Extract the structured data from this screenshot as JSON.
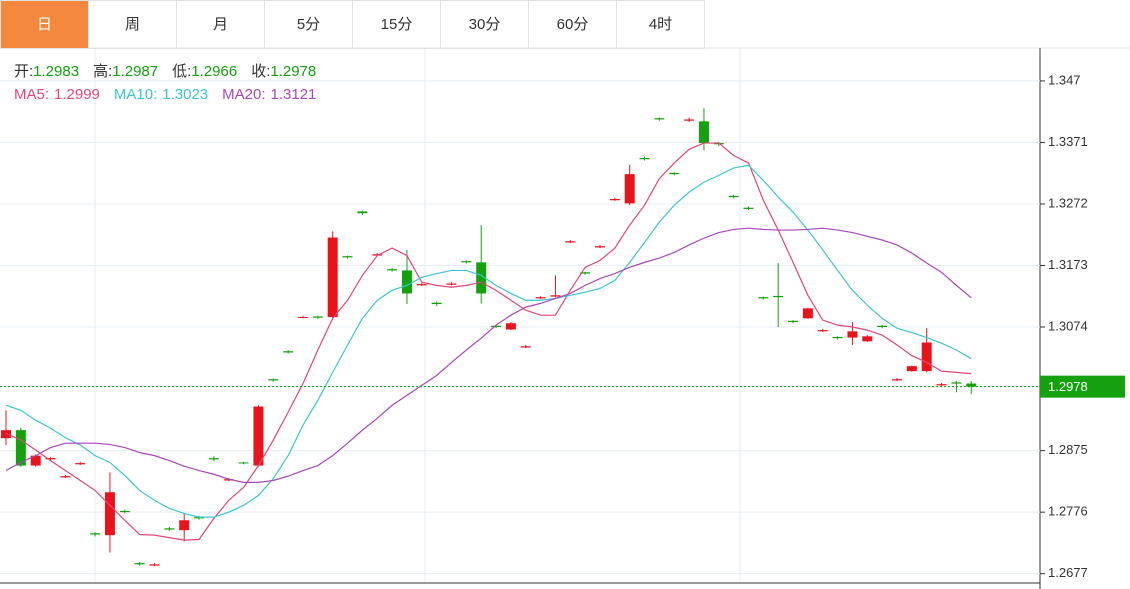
{
  "tabs": [
    "日",
    "周",
    "月",
    "5分",
    "15分",
    "30分",
    "60分",
    "4时"
  ],
  "active_tab": 0,
  "chart_data": {
    "type": "candlestick",
    "ohlc_labels": [
      "开:",
      "高:",
      "低:",
      "收:"
    ],
    "open": [
      1.2895,
      1.2908,
      1.2851,
      1.2861,
      1.2832,
      1.2853,
      1.2742,
      1.2739,
      1.2778,
      1.2694,
      1.269,
      1.275,
      1.2747,
      1.2768,
      1.2863,
      1.2827,
      1.2856,
      1.2851,
      1.299,
      1.3035,
      1.3089,
      1.3091,
      1.309,
      1.3188,
      1.326,
      1.3189,
      1.3167,
      1.3165,
      1.3141,
      1.3113,
      1.3142,
      1.318,
      1.3178,
      1.3076,
      1.307,
      1.3041,
      1.312,
      1.3123,
      1.321,
      1.3162,
      1.3202,
      1.3278,
      1.3273,
      1.3346,
      1.341,
      1.3322,
      1.3406,
      1.3405,
      1.337,
      1.3285,
      1.3266,
      1.3122,
      1.3124,
      1.3084,
      1.3088,
      1.3067,
      1.3058,
      1.3057,
      1.3051,
      1.3076,
      1.2988,
      1.3003,
      1.3003,
      1.298,
      1.2985,
      1.2983
    ],
    "high": [
      1.294,
      1.2912,
      1.2869,
      1.2865,
      1.2836,
      1.2857,
      1.2744,
      1.284,
      1.278,
      1.2696,
      1.2694,
      1.2752,
      1.2774,
      1.277,
      1.2866,
      1.2831,
      1.2857,
      1.2948,
      1.2991,
      1.3037,
      1.3092,
      1.3092,
      1.3228,
      1.3189,
      1.3261,
      1.3193,
      1.3169,
      1.3198,
      1.3145,
      1.3115,
      1.3146,
      1.3181,
      1.3238,
      1.3077,
      1.3082,
      1.3045,
      1.3124,
      1.3157,
      1.3214,
      1.3163,
      1.3206,
      1.3282,
      1.3335,
      1.3348,
      1.3411,
      1.3323,
      1.3411,
      1.3426,
      1.3372,
      1.3287,
      1.3268,
      1.3123,
      1.3177,
      1.3085,
      1.3105,
      1.3071,
      1.3059,
      1.3082,
      1.3061,
      1.3077,
      1.2992,
      1.3012,
      1.3072,
      1.2984,
      1.2987,
      1.2987
    ],
    "low": [
      1.2884,
      1.2849,
      1.2849,
      1.286,
      1.2831,
      1.2852,
      1.2737,
      1.2711,
      1.2774,
      1.269,
      1.2689,
      1.2746,
      1.2729,
      1.2764,
      1.2858,
      1.2826,
      1.2853,
      1.2849,
      1.2986,
      1.3031,
      1.3088,
      1.3087,
      1.3088,
      1.3184,
      1.3254,
      1.3188,
      1.3163,
      1.3111,
      1.314,
      1.3108,
      1.3141,
      1.3176,
      1.3112,
      1.3072,
      1.3069,
      1.304,
      1.3119,
      1.3122,
      1.3209,
      1.3158,
      1.3201,
      1.3277,
      1.327,
      1.3342,
      1.3406,
      1.3318,
      1.3404,
      1.3358,
      1.3365,
      1.3281,
      1.3262,
      1.3118,
      1.3074,
      1.308,
      1.3087,
      1.3066,
      1.3054,
      1.3045,
      1.305,
      1.3072,
      1.2987,
      1.3002,
      1.3001,
      1.2979,
      1.2969,
      1.2966
    ],
    "close": [
      1.2908,
      1.2851,
      1.2867,
      1.2863,
      1.2834,
      1.2855,
      1.274,
      1.2808,
      1.2776,
      1.2692,
      1.2692,
      1.2748,
      1.2763,
      1.2766,
      1.2861,
      1.2829,
      1.2855,
      1.2946,
      1.2988,
      1.3033,
      1.309,
      1.3089,
      1.3218,
      1.3186,
      1.3257,
      1.3191,
      1.3165,
      1.3128,
      1.3143,
      1.3111,
      1.3144,
      1.3178,
      1.3128,
      1.3074,
      1.308,
      1.3043,
      1.3122,
      1.3125,
      1.3212,
      1.316,
      1.3204,
      1.328,
      1.332,
      1.3344,
      1.3408,
      1.332,
      1.3408,
      1.337,
      1.3368,
      1.3283,
      1.3264,
      1.312,
      1.3122,
      1.3082,
      1.3104,
      1.3069,
      1.3056,
      1.3067,
      1.3059,
      1.3074,
      1.299,
      1.3011,
      1.3049,
      1.2982,
      1.2983,
      1.2978
    ],
    "up_color": "#e8141b",
    "down_color": "#13a10e",
    "last_price_color": "#13a10e",
    "series": [
      {
        "name": "MA5:",
        "color": "#e1467c",
        "values": [
          1.2903,
          1.2892,
          1.2876,
          1.2859,
          1.2843,
          1.2827,
          1.2811,
          1.2787,
          1.2763,
          1.274,
          1.2739,
          1.2735,
          1.2731,
          1.2732,
          1.2766,
          1.2795,
          1.2816,
          1.2851,
          1.2892,
          1.2937,
          1.2983,
          1.3037,
          1.3088,
          1.3117,
          1.3157,
          1.3189,
          1.3201,
          1.3189,
          1.3146,
          1.3141,
          1.3138,
          1.3141,
          1.3146,
          1.3133,
          1.3117,
          1.3101,
          1.3093,
          1.3093,
          1.3133,
          1.317,
          1.3181,
          1.3201,
          1.3238,
          1.327,
          1.3313,
          1.3338,
          1.336,
          1.337,
          1.337,
          1.335,
          1.3338,
          1.3278,
          1.323,
          1.3178,
          1.3125,
          1.3085,
          1.3077,
          1.3074,
          1.3069,
          1.3061,
          1.3045,
          1.3028,
          1.3017,
          1.3003,
          1.3001,
          1.2999
        ]
      },
      {
        "name": "MA10:",
        "color": "#3cc4d3",
        "values": [
          1.2948,
          1.294,
          1.2924,
          1.2911,
          1.2896,
          1.2884,
          1.2867,
          1.2856,
          1.2835,
          1.2811,
          1.2795,
          1.2782,
          1.2774,
          1.2768,
          1.2768,
          1.2776,
          1.2787,
          1.2803,
          1.283,
          1.2867,
          1.2916,
          1.2956,
          1.3001,
          1.3045,
          1.3088,
          1.3117,
          1.3133,
          1.3141,
          1.3154,
          1.316,
          1.3165,
          1.3165,
          1.3157,
          1.3141,
          1.3128,
          1.3117,
          1.3117,
          1.312,
          1.3125,
          1.313,
          1.3136,
          1.3149,
          1.3178,
          1.321,
          1.3243,
          1.327,
          1.3291,
          1.3307,
          1.3318,
          1.333,
          1.3334,
          1.331,
          1.3283,
          1.3259,
          1.323,
          1.3198,
          1.3165,
          1.3133,
          1.3109,
          1.3088,
          1.3072,
          1.3065,
          1.3057,
          1.3048,
          1.3037,
          1.3023
        ]
      },
      {
        "name": "MA20:",
        "color": "#a848b8",
        "values": [
          1.2843,
          1.2856,
          1.2867,
          1.288,
          1.2887,
          1.2887,
          1.2887,
          1.2885,
          1.288,
          1.2872,
          1.2867,
          1.2859,
          1.285,
          1.2843,
          1.2837,
          1.2829,
          1.2824,
          1.2824,
          1.2827,
          1.2834,
          1.2843,
          1.2851,
          1.2867,
          1.2887,
          1.2908,
          1.2927,
          1.2948,
          1.2964,
          1.298,
          1.2996,
          1.3017,
          1.3037,
          1.3056,
          1.3077,
          1.3093,
          1.3106,
          1.3112,
          1.312,
          1.3128,
          1.3141,
          1.3152,
          1.316,
          1.317,
          1.3178,
          1.3185,
          1.3194,
          1.3206,
          1.3217,
          1.3226,
          1.3231,
          1.3233,
          1.3231,
          1.323,
          1.323,
          1.3231,
          1.3233,
          1.323,
          1.3226,
          1.322,
          1.3214,
          1.3206,
          1.3193,
          1.3177,
          1.3162,
          1.3141,
          1.3121
        ]
      }
    ],
    "ylim": [
      1.2662,
      1.3523
    ],
    "yticks": [
      1.347,
      1.3371,
      1.3272,
      1.3173,
      1.3074,
      1.2875,
      1.2776,
      1.2677
    ],
    "grid": true
  }
}
